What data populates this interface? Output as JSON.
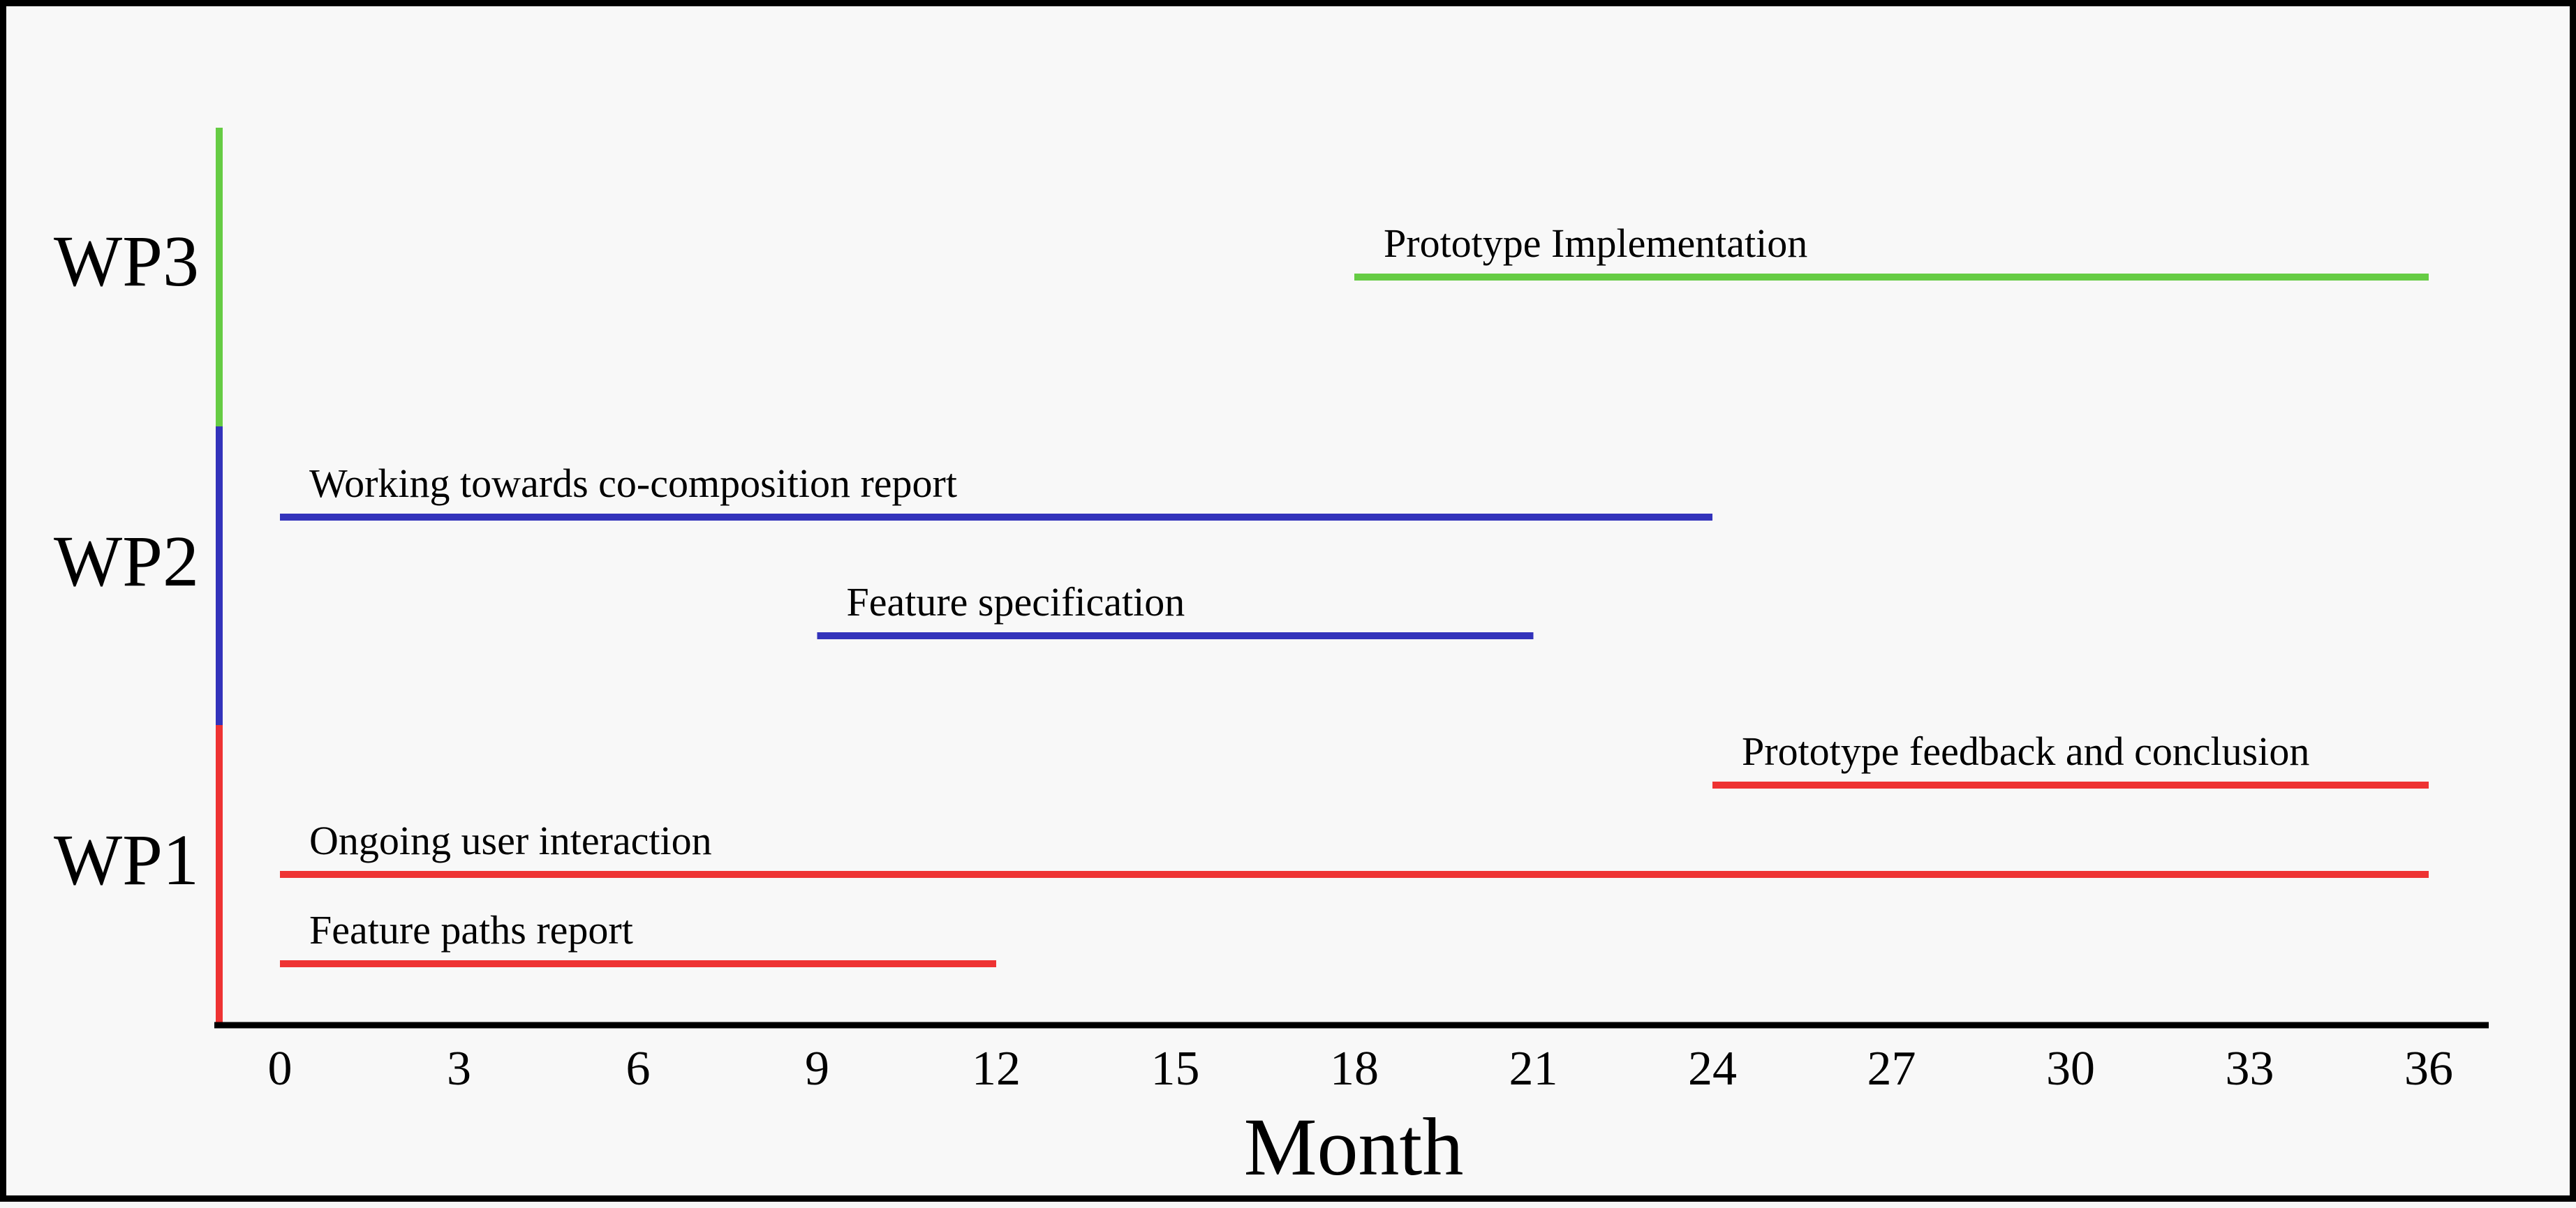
{
  "chart_data": {
    "type": "gantt",
    "title": "",
    "xlabel": "Month",
    "ylabel": "",
    "xlim": [
      0,
      36
    ],
    "xticks": [
      0,
      3,
      6,
      9,
      12,
      15,
      18,
      21,
      24,
      27,
      30,
      33,
      36
    ],
    "grid": false,
    "legend": "none",
    "work_packages": [
      {
        "name": "WP1",
        "color": "#ee3333",
        "tasks": [
          {
            "label": "Prototype feedback and conclusion",
            "start": 24,
            "end": 36
          },
          {
            "label": "Ongoing user interaction",
            "start": 0,
            "end": 36
          },
          {
            "label": "Feature paths report",
            "start": 0,
            "end": 12
          }
        ]
      },
      {
        "name": "WP2",
        "color": "#3333bb",
        "tasks": [
          {
            "label": "Working towards co-composition report",
            "start": 0,
            "end": 24
          },
          {
            "label": "Feature specification",
            "start": 9,
            "end": 21
          }
        ]
      },
      {
        "name": "WP3",
        "color": "#66cc44",
        "tasks": [
          {
            "label": "Prototype Implementation",
            "start": 18,
            "end": 36
          }
        ]
      }
    ]
  }
}
